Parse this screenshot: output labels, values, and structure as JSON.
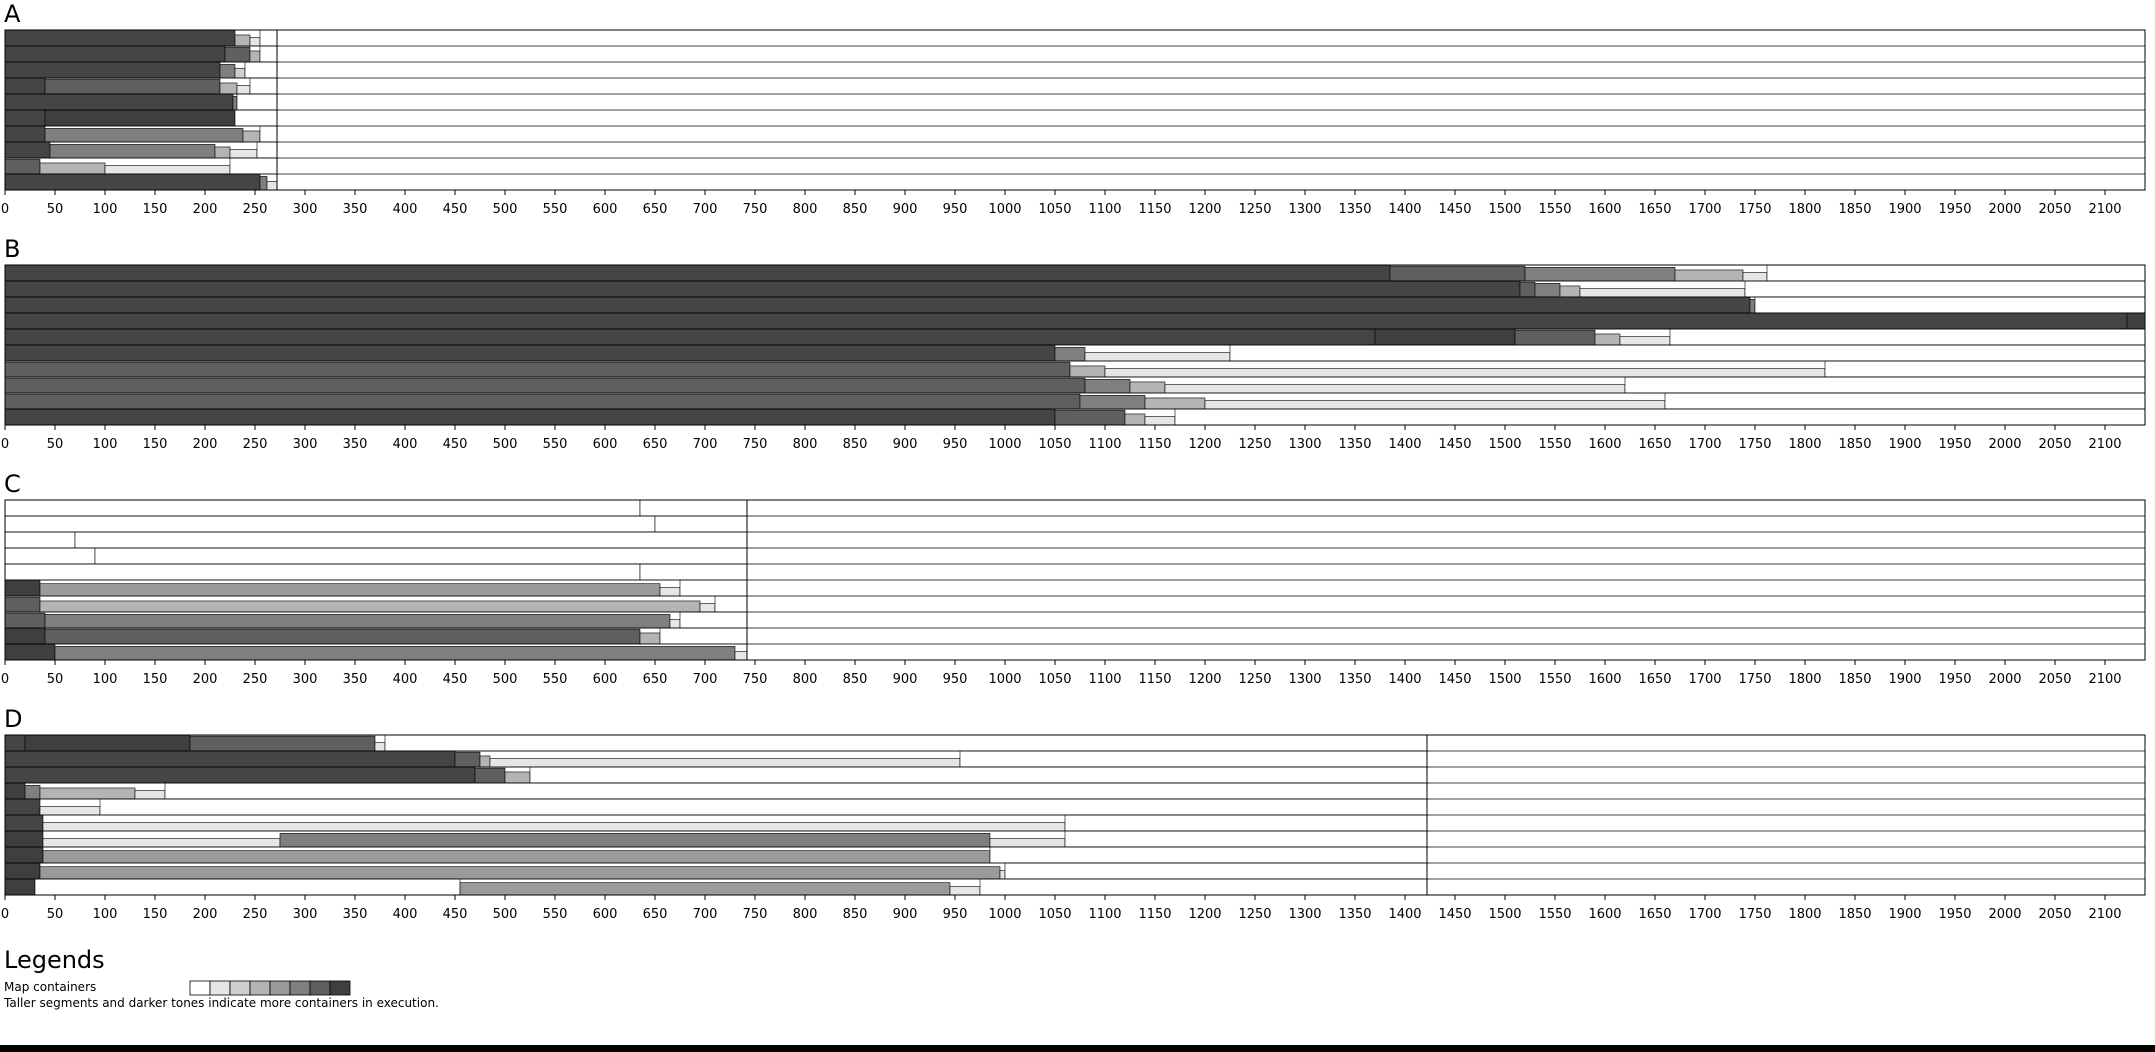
{
  "chart_data": [
    {
      "type": "bar",
      "panel": "A",
      "xlim": [
        0,
        2140
      ],
      "xticks": [
        0,
        50,
        100,
        150,
        200,
        250,
        300,
        350,
        400,
        450,
        500,
        550,
        600,
        650,
        700,
        750,
        800,
        850,
        900,
        950,
        1000,
        1050,
        1100,
        1150,
        1200,
        1250,
        1300,
        1350,
        1400,
        1450,
        1500,
        1550,
        1600,
        1650,
        1700,
        1750,
        1800,
        1850,
        1900,
        1950,
        2000,
        2050,
        2100
      ],
      "row_count": 10,
      "boundary": 272,
      "rows": [
        {
          "segments": [
            [
              0,
              230,
              8
            ],
            [
              230,
              245,
              3
            ],
            [
              245,
              255,
              1
            ],
            [
              255,
              272,
              0
            ]
          ]
        },
        {
          "segments": [
            [
              0,
              220,
              8
            ],
            [
              220,
              245,
              6
            ],
            [
              245,
              255,
              3
            ],
            [
              255,
              272,
              0
            ]
          ]
        },
        {
          "segments": [
            [
              0,
              215,
              8
            ],
            [
              215,
              230,
              5
            ],
            [
              230,
              240,
              2
            ],
            [
              240,
              272,
              0
            ]
          ]
        },
        {
          "segments": [
            [
              0,
              40,
              8
            ],
            [
              40,
              215,
              6
            ],
            [
              215,
              232,
              3
            ],
            [
              232,
              245,
              1
            ],
            [
              245,
              272,
              0
            ]
          ]
        },
        {
          "segments": [
            [
              0,
              228,
              8
            ],
            [
              228,
              232,
              5
            ],
            [
              232,
              272,
              0
            ]
          ]
        },
        {
          "segments": [
            [
              0,
              40,
              8
            ],
            [
              40,
              230,
              7
            ],
            [
              230,
              272,
              0
            ]
          ]
        },
        {
          "segments": [
            [
              0,
              40,
              8
            ],
            [
              40,
              238,
              5
            ],
            [
              238,
              255,
              3
            ],
            [
              255,
              272,
              0
            ]
          ]
        },
        {
          "segments": [
            [
              0,
              45,
              8
            ],
            [
              45,
              210,
              5
            ],
            [
              210,
              225,
              3
            ],
            [
              225,
              252,
              1
            ],
            [
              252,
              272,
              0
            ]
          ]
        },
        {
          "segments": [
            [
              0,
              35,
              6
            ],
            [
              35,
              100,
              3
            ],
            [
              100,
              225,
              1
            ],
            [
              225,
              272,
              0
            ]
          ]
        },
        {
          "segments": [
            [
              0,
              255,
              8
            ],
            [
              255,
              262,
              5
            ],
            [
              262,
              272,
              1
            ]
          ]
        }
      ]
    },
    {
      "type": "bar",
      "panel": "B",
      "xlim": [
        0,
        2140
      ],
      "xticks": [
        0,
        50,
        100,
        150,
        200,
        250,
        300,
        350,
        400,
        450,
        500,
        550,
        600,
        650,
        700,
        750,
        800,
        850,
        900,
        950,
        1000,
        1050,
        1100,
        1150,
        1200,
        1250,
        1300,
        1350,
        1400,
        1450,
        1500,
        1550,
        1600,
        1650,
        1700,
        1750,
        1800,
        1850,
        1900,
        1950,
        2000,
        2050,
        2100
      ],
      "row_count": 10,
      "boundary": 2140,
      "rows": [
        {
          "segments": [
            [
              0,
              1385,
              8
            ],
            [
              1385,
              1520,
              6
            ],
            [
              1520,
              1670,
              5
            ],
            [
              1670,
              1738,
              3
            ],
            [
              1738,
              1762,
              1
            ],
            [
              1762,
              2140,
              0
            ]
          ]
        },
        {
          "segments": [
            [
              0,
              1515,
              8
            ],
            [
              1515,
              1530,
              6
            ],
            [
              1530,
              1555,
              5
            ],
            [
              1555,
              1575,
              3
            ],
            [
              1575,
              1740,
              1
            ],
            [
              1740,
              2140,
              0
            ]
          ]
        },
        {
          "segments": [
            [
              0,
              1745,
              8
            ],
            [
              1745,
              1750,
              5
            ],
            [
              1750,
              2140,
              0
            ]
          ]
        },
        {
          "segments": [
            [
              0,
              2122,
              8
            ],
            [
              2122,
              2140,
              7
            ]
          ]
        },
        {
          "segments": [
            [
              0,
              1370,
              8
            ],
            [
              1370,
              1510,
              7
            ],
            [
              1510,
              1590,
              6
            ],
            [
              1590,
              1615,
              3
            ],
            [
              1615,
              1665,
              1
            ],
            [
              1665,
              2140,
              0
            ]
          ]
        },
        {
          "segments": [
            [
              0,
              1050,
              8
            ],
            [
              1050,
              1080,
              5
            ],
            [
              1080,
              1225,
              1
            ],
            [
              1225,
              2140,
              0
            ]
          ]
        },
        {
          "segments": [
            [
              0,
              1065,
              6
            ],
            [
              1065,
              1100,
              3
            ],
            [
              1100,
              1820,
              1
            ],
            [
              1820,
              2140,
              0
            ]
          ]
        },
        {
          "segments": [
            [
              0,
              1080,
              6
            ],
            [
              1080,
              1125,
              5
            ],
            [
              1125,
              1160,
              3
            ],
            [
              1160,
              1620,
              1
            ],
            [
              1620,
              2140,
              0
            ]
          ]
        },
        {
          "segments": [
            [
              0,
              1075,
              6
            ],
            [
              1075,
              1140,
              5
            ],
            [
              1140,
              1200,
              3
            ],
            [
              1200,
              1660,
              1
            ],
            [
              1660,
              2140,
              0
            ]
          ]
        },
        {
          "segments": [
            [
              0,
              1050,
              8
            ],
            [
              1050,
              1120,
              6
            ],
            [
              1120,
              1140,
              3
            ],
            [
              1140,
              1170,
              1
            ],
            [
              1170,
              2140,
              0
            ]
          ]
        }
      ]
    },
    {
      "type": "bar",
      "panel": "C",
      "xlim": [
        0,
        2140
      ],
      "xticks": [
        0,
        50,
        100,
        150,
        200,
        250,
        300,
        350,
        400,
        450,
        500,
        550,
        600,
        650,
        700,
        750,
        800,
        850,
        900,
        950,
        1000,
        1050,
        1100,
        1150,
        1200,
        1250,
        1300,
        1350,
        1400,
        1450,
        1500,
        1550,
        1600,
        1650,
        1700,
        1750,
        1800,
        1850,
        1900,
        1950,
        2000,
        2050,
        2100
      ],
      "row_count": 10,
      "boundary": 742,
      "rows": [
        {
          "segments": [
            [
              0,
              635,
              0
            ],
            [
              635,
              742,
              0
            ]
          ]
        },
        {
          "segments": [
            [
              0,
              650,
              0
            ],
            [
              650,
              742,
              0
            ]
          ]
        },
        {
          "segments": [
            [
              0,
              70,
              0
            ],
            [
              70,
              742,
              0
            ]
          ]
        },
        {
          "segments": [
            [
              0,
              90,
              0
            ],
            [
              90,
              742,
              0
            ]
          ]
        },
        {
          "segments": [
            [
              0,
              635,
              0
            ],
            [
              635,
              742,
              0
            ]
          ]
        },
        {
          "segments": [
            [
              0,
              35,
              7
            ],
            [
              35,
              655,
              4
            ],
            [
              655,
              675,
              1
            ],
            [
              675,
              742,
              0
            ]
          ]
        },
        {
          "segments": [
            [
              0,
              35,
              6
            ],
            [
              35,
              695,
              3
            ],
            [
              695,
              710,
              1
            ],
            [
              710,
              742,
              0
            ]
          ]
        },
        {
          "segments": [
            [
              0,
              40,
              6
            ],
            [
              40,
              665,
              5
            ],
            [
              665,
              675,
              1
            ],
            [
              675,
              742,
              0
            ]
          ]
        },
        {
          "segments": [
            [
              0,
              40,
              7
            ],
            [
              40,
              635,
              6
            ],
            [
              635,
              655,
              3
            ],
            [
              655,
              742,
              0
            ]
          ]
        },
        {
          "segments": [
            [
              0,
              50,
              7
            ],
            [
              50,
              730,
              5
            ],
            [
              730,
              742,
              1
            ]
          ]
        }
      ]
    },
    {
      "type": "bar",
      "panel": "D",
      "xlim": [
        0,
        2140
      ],
      "xticks": [
        0,
        50,
        100,
        150,
        200,
        250,
        300,
        350,
        400,
        450,
        500,
        550,
        600,
        650,
        700,
        750,
        800,
        850,
        900,
        950,
        1000,
        1050,
        1100,
        1150,
        1200,
        1250,
        1300,
        1350,
        1400,
        1450,
        1500,
        1550,
        1600,
        1650,
        1700,
        1750,
        1800,
        1850,
        1900,
        1950,
        2000,
        2050,
        2100
      ],
      "row_count": 10,
      "boundary": 1422,
      "rows": [
        {
          "segments": [
            [
              0,
              20,
              8
            ],
            [
              20,
              185,
              7
            ],
            [
              185,
              370,
              6
            ],
            [
              370,
              380,
              1
            ],
            [
              380,
              1422,
              0
            ]
          ]
        },
        {
          "segments": [
            [
              0,
              450,
              8
            ],
            [
              450,
              475,
              6
            ],
            [
              475,
              485,
              3
            ],
            [
              485,
              955,
              1
            ],
            [
              955,
              1422,
              0
            ]
          ]
        },
        {
          "segments": [
            [
              0,
              470,
              8
            ],
            [
              470,
              500,
              6
            ],
            [
              500,
              525,
              3
            ],
            [
              525,
              1422,
              0
            ]
          ]
        },
        {
          "segments": [
            [
              0,
              20,
              7
            ],
            [
              20,
              35,
              5
            ],
            [
              35,
              130,
              3
            ],
            [
              130,
              160,
              1
            ],
            [
              160,
              1422,
              0
            ]
          ]
        },
        {
          "segments": [
            [
              0,
              35,
              8
            ],
            [
              35,
              95,
              1
            ],
            [
              95,
              1422,
              0
            ]
          ]
        },
        {
          "segments": [
            [
              0,
              38,
              8
            ],
            [
              38,
              1060,
              1
            ],
            [
              1060,
              1422,
              0
            ]
          ]
        },
        {
          "segments": [
            [
              0,
              38,
              7
            ],
            [
              38,
              275,
              1
            ],
            [
              275,
              985,
              5
            ],
            [
              985,
              1060,
              1
            ],
            [
              1060,
              1422,
              0
            ]
          ]
        },
        {
          "segments": [
            [
              0,
              38,
              7
            ],
            [
              38,
              985,
              4
            ],
            [
              985,
              1422,
              0
            ]
          ]
        },
        {
          "segments": [
            [
              0,
              35,
              7
            ],
            [
              35,
              995,
              4
            ],
            [
              995,
              1000,
              1
            ],
            [
              1000,
              1422,
              0
            ]
          ]
        },
        {
          "segments": [
            [
              0,
              30,
              7
            ],
            [
              30,
              455,
              0
            ],
            [
              455,
              945,
              4
            ],
            [
              945,
              975,
              1
            ],
            [
              975,
              1422,
              0
            ]
          ]
        }
      ]
    }
  ],
  "legend": {
    "title": "Legends",
    "label": "Map containers",
    "swatches": [
      "#ffffff",
      "#e6e6e6",
      "#cfcfcf",
      "#b4b4b4",
      "#9a9a9a",
      "#7f7f7f",
      "#5f5f5f",
      "#3f3f3f"
    ],
    "note": "Taller segments and darker tones indicate more containers in execution."
  },
  "palette": [
    "#ffffff",
    "#e6e6e6",
    "#cfcfcf",
    "#b4b4b4",
    "#9a9a9a",
    "#7f7f7f",
    "#5f5f5f",
    "#3f3f3f",
    "#454545"
  ]
}
